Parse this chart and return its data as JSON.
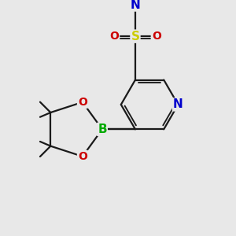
{
  "background_color": "#e8e8e8",
  "fig_size": [
    3.0,
    3.0
  ],
  "dpi": 100,
  "line_color": "#1a1a1a",
  "line_width": 1.6,
  "atom_bg": "#e8e8e8",
  "colors": {
    "N": "#0000cc",
    "S": "#cccc00",
    "O": "#cc0000",
    "B": "#00aa00",
    "C": "#1a1a1a"
  }
}
